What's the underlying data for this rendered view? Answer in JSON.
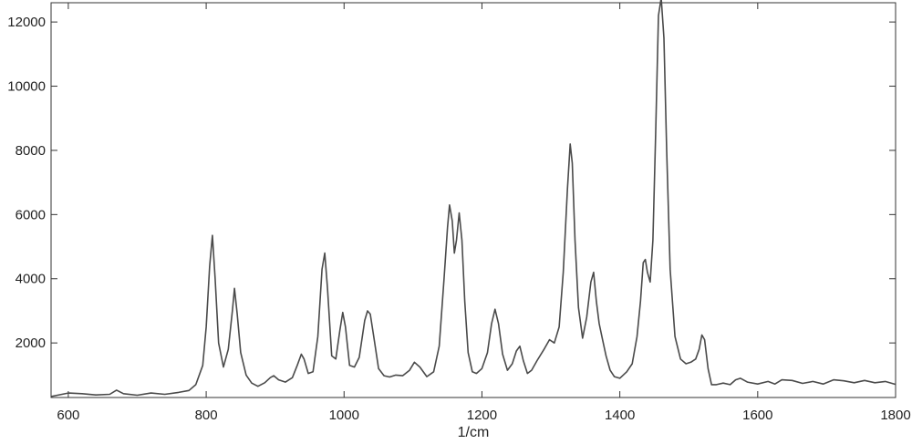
{
  "chart_data": {
    "type": "line",
    "title": "",
    "xlabel": "1/cm",
    "ylabel": "",
    "xlim": [
      575,
      1800
    ],
    "ylim": [
      300,
      12600
    ],
    "xticks": [
      600,
      800,
      1000,
      1200,
      1400,
      1600,
      1800
    ],
    "xtick_labels": [
      "600",
      "800",
      "1000",
      "1200",
      "1400",
      "1600",
      "1800"
    ],
    "yticks": [
      2000,
      4000,
      6000,
      8000,
      10000,
      12000
    ],
    "ytick_labels": [
      "2000",
      "4000",
      "6000",
      "8000",
      "10000",
      "12000"
    ],
    "grid": false,
    "legend": "none",
    "line_color": "#4a4a4a",
    "series": [
      {
        "x": [
          575,
          600,
          620,
          640,
          660,
          670,
          680,
          700,
          720,
          740,
          760,
          775,
          785,
          795,
          800,
          805,
          809,
          813,
          818,
          825,
          832,
          838,
          841,
          845,
          850,
          858,
          866,
          875,
          885,
          893,
          898,
          905,
          915,
          925,
          932,
          938,
          942,
          948,
          955,
          962,
          968,
          972,
          976,
          982,
          988,
          994,
          998,
          1002,
          1008,
          1015,
          1022,
          1030,
          1034,
          1038,
          1043,
          1050,
          1058,
          1066,
          1075,
          1085,
          1095,
          1102,
          1110,
          1120,
          1130,
          1138,
          1145,
          1150,
          1153,
          1157,
          1160,
          1163,
          1167,
          1171,
          1175,
          1180,
          1186,
          1192,
          1200,
          1208,
          1214,
          1219,
          1224,
          1230,
          1237,
          1244,
          1250,
          1255,
          1260,
          1266,
          1272,
          1280,
          1290,
          1298,
          1305,
          1312,
          1318,
          1324,
          1328,
          1331,
          1335,
          1340,
          1346,
          1352,
          1358,
          1362,
          1366,
          1370,
          1375,
          1380,
          1386,
          1392,
          1400,
          1410,
          1418,
          1425,
          1430,
          1434,
          1437,
          1440,
          1444,
          1448,
          1452,
          1456,
          1460,
          1464,
          1468,
          1473,
          1480,
          1488,
          1496,
          1503,
          1510,
          1515,
          1519,
          1523,
          1528,
          1533,
          1540,
          1550,
          1560,
          1568,
          1575,
          1585,
          1600,
          1615,
          1625,
          1635,
          1650,
          1665,
          1680,
          1695,
          1710,
          1725,
          1740,
          1755,
          1770,
          1785,
          1800
        ],
        "values": [
          330,
          440,
          420,
          380,
          400,
          530,
          420,
          370,
          440,
          400,
          460,
          520,
          700,
          1300,
          2500,
          4400,
          5350,
          4000,
          2000,
          1250,
          1800,
          3000,
          3700,
          2900,
          1700,
          1000,
          750,
          650,
          760,
          920,
          980,
          850,
          780,
          920,
          1300,
          1650,
          1500,
          1050,
          1100,
          2200,
          4300,
          4800,
          3700,
          1600,
          1500,
          2400,
          2950,
          2500,
          1300,
          1250,
          1550,
          2700,
          3000,
          2900,
          2200,
          1200,
          980,
          940,
          1000,
          980,
          1150,
          1400,
          1250,
          950,
          1100,
          1900,
          4000,
          5600,
          6300,
          5800,
          4800,
          5200,
          6050,
          5200,
          3300,
          1700,
          1100,
          1050,
          1200,
          1700,
          2600,
          3050,
          2600,
          1650,
          1150,
          1350,
          1750,
          1900,
          1450,
          1050,
          1150,
          1450,
          1800,
          2100,
          2000,
          2500,
          4200,
          6800,
          8200,
          7600,
          5200,
          3100,
          2150,
          2800,
          3900,
          4200,
          3300,
          2600,
          2100,
          1600,
          1150,
          950,
          900,
          1100,
          1350,
          2200,
          3300,
          4500,
          4600,
          4200,
          3900,
          5200,
          8500,
          12200,
          12750,
          11500,
          8000,
          4300,
          2200,
          1500,
          1350,
          1400,
          1500,
          1800,
          2250,
          2100,
          1200,
          700,
          700,
          750,
          700,
          850,
          900,
          780,
          720,
          800,
          720,
          850,
          830,
          740,
          800,
          720,
          850,
          820,
          760,
          830,
          760,
          800,
          710
        ]
      }
    ]
  }
}
